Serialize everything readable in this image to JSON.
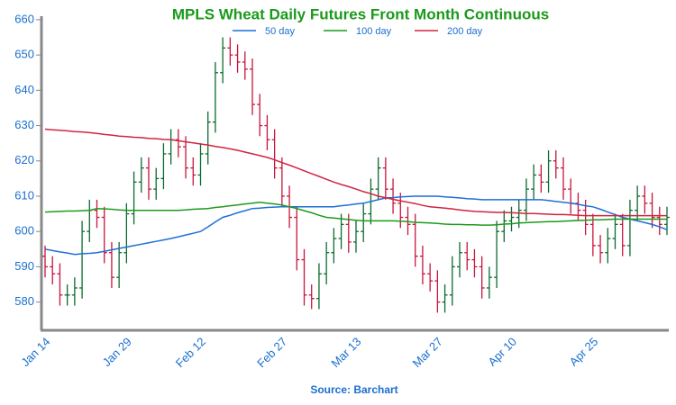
{
  "chart_data": {
    "type": "ohlc",
    "title": "MPLS Wheat Daily Futures Front Month Continuous",
    "source": "Source: Barchart",
    "categories": [
      "Jan 14",
      null,
      null,
      null,
      null,
      null,
      null,
      null,
      null,
      null,
      null,
      "Jan 29",
      null,
      null,
      null,
      null,
      null,
      null,
      null,
      null,
      null,
      "Feb 12",
      null,
      null,
      null,
      null,
      null,
      null,
      null,
      null,
      null,
      null,
      "Feb 27",
      null,
      null,
      null,
      null,
      null,
      null,
      null,
      null,
      null,
      "Mar 13",
      null,
      null,
      null,
      null,
      null,
      null,
      null,
      null,
      null,
      null,
      "Mar 27",
      null,
      null,
      null,
      null,
      null,
      null,
      null,
      null,
      null,
      "Apr 10",
      null,
      null,
      null,
      null,
      null,
      null,
      null,
      null,
      null,
      null,
      "Apr 25",
      null,
      null,
      null,
      null,
      null,
      null,
      null,
      null,
      null,
      null
    ],
    "open": [
      593,
      590,
      588,
      582,
      582,
      584,
      600,
      606,
      604,
      594,
      587,
      594,
      605,
      614,
      618,
      612,
      615,
      622,
      626,
      624,
      618,
      616,
      622,
      631,
      645,
      652,
      650,
      648,
      646,
      636,
      630,
      626,
      618,
      610,
      604,
      592,
      582,
      581,
      588,
      594,
      598,
      602,
      597,
      600,
      605,
      612,
      618,
      612,
      608,
      604,
      602,
      593,
      588,
      586,
      580,
      582,
      590,
      594,
      592,
      590,
      584,
      587,
      600,
      603,
      604,
      606,
      612,
      616,
      614,
      620,
      618,
      612,
      608,
      606,
      602,
      596,
      594,
      598,
      602,
      596,
      606,
      610,
      608,
      604,
      602
    ],
    "high": [
      596,
      593,
      591,
      585,
      587,
      603,
      609,
      609,
      607,
      597,
      597,
      608,
      617,
      621,
      621,
      618,
      625,
      629,
      629,
      627,
      621,
      625,
      634,
      648,
      655,
      655,
      653,
      651,
      649,
      639,
      633,
      629,
      621,
      613,
      607,
      595,
      585,
      591,
      597,
      601,
      605,
      605,
      603,
      608,
      615,
      621,
      621,
      615,
      611,
      607,
      605,
      596,
      591,
      589,
      585,
      593,
      597,
      597,
      595,
      593,
      590,
      603,
      606,
      607,
      609,
      615,
      619,
      619,
      623,
      623,
      621,
      615,
      611,
      609,
      605,
      599,
      601,
      605,
      605,
      609,
      613,
      613,
      611,
      607,
      607
    ],
    "low": [
      587,
      585,
      579,
      579,
      579,
      581,
      597,
      601,
      591,
      584,
      584,
      591,
      602,
      611,
      609,
      609,
      612,
      619,
      621,
      615,
      613,
      613,
      619,
      628,
      642,
      647,
      645,
      643,
      633,
      627,
      623,
      615,
      607,
      601,
      589,
      579,
      578,
      578,
      585,
      591,
      595,
      594,
      594,
      597,
      602,
      609,
      609,
      605,
      601,
      599,
      590,
      585,
      583,
      577,
      577,
      579,
      587,
      589,
      587,
      581,
      581,
      584,
      597,
      600,
      601,
      603,
      609,
      611,
      611,
      615,
      609,
      605,
      603,
      599,
      593,
      591,
      591,
      595,
      593,
      593,
      603,
      605,
      601,
      599,
      599
    ],
    "close": [
      590,
      588,
      582,
      582,
      584,
      600,
      606,
      604,
      594,
      587,
      594,
      605,
      614,
      618,
      612,
      615,
      622,
      626,
      624,
      618,
      616,
      622,
      631,
      645,
      652,
      650,
      648,
      646,
      636,
      630,
      626,
      618,
      610,
      604,
      592,
      582,
      581,
      588,
      594,
      598,
      602,
      597,
      600,
      605,
      612,
      618,
      612,
      608,
      604,
      602,
      593,
      588,
      586,
      580,
      582,
      590,
      594,
      592,
      590,
      584,
      587,
      600,
      603,
      604,
      606,
      612,
      616,
      614,
      620,
      618,
      612,
      608,
      606,
      602,
      596,
      594,
      598,
      602,
      596,
      606,
      610,
      608,
      604,
      602,
      604
    ],
    "up_color": "#0b6b2e",
    "down_color": "#c8143c",
    "series": [
      {
        "name": "50 day",
        "color": "#1f6fd6",
        "values": [
          595,
          594.6,
          594.2,
          593.9,
          593.5,
          593.7,
          593.8,
          594,
          594.4,
          594.8,
          595.2,
          595.6,
          596,
          596.4,
          596.8,
          597.2,
          597.6,
          598,
          598.5,
          599,
          599.5,
          600,
          601.3,
          602.7,
          604,
          604.6,
          605.3,
          605.9,
          606.5,
          606.6,
          606.8,
          606.9,
          607,
          607,
          607,
          607,
          607,
          607,
          607,
          607,
          607.3,
          607.5,
          607.8,
          608,
          608.5,
          609,
          609.5,
          609.6,
          609.8,
          609.9,
          610,
          610,
          610,
          610,
          609.8,
          609.7,
          609.5,
          609.3,
          609.2,
          609,
          609,
          609,
          609,
          609,
          609,
          609,
          609,
          609,
          608.8,
          608.5,
          608.3,
          608,
          607.7,
          607.3,
          607,
          606.3,
          605.5,
          604.8,
          604,
          603.5,
          603,
          602.5,
          602,
          601.3,
          600.5
        ]
      },
      {
        "name": "100 day",
        "color": "#1d9a1d",
        "values": [
          605.5,
          605.6,
          605.7,
          605.8,
          605.8,
          605.9,
          606,
          606.5,
          606.4,
          606.3,
          606.1,
          606,
          606,
          606,
          606,
          606,
          606,
          606,
          606,
          606.1,
          606.3,
          606.4,
          606.5,
          606.8,
          607,
          607.3,
          607.5,
          607.8,
          608,
          608.3,
          608,
          607.8,
          607.5,
          607,
          606.5,
          605.9,
          605.3,
          604.6,
          604,
          603.8,
          603.6,
          603.4,
          603.2,
          603,
          603,
          603,
          603,
          603,
          602.9,
          602.8,
          602.6,
          602.5,
          602.4,
          602.3,
          602.1,
          602,
          602,
          601.9,
          601.9,
          601.8,
          601.8,
          601.9,
          602.1,
          602.2,
          602.4,
          602.5,
          602.6,
          602.7,
          602.8,
          602.8,
          602.9,
          603,
          603.1,
          603.2,
          603.3,
          603.3,
          603.4,
          603.5,
          603.5,
          603.5,
          603.5,
          603.5,
          603.5,
          603.5,
          603.5
        ]
      },
      {
        "name": "200 day",
        "color": "#d0243f",
        "values": [
          629,
          628.8,
          628.7,
          628.5,
          628.3,
          628.2,
          628,
          627.8,
          627.5,
          627.3,
          627,
          626.9,
          626.7,
          626.6,
          626.4,
          626.3,
          626.1,
          626,
          625.7,
          625.4,
          625.1,
          624.8,
          624.5,
          624.1,
          623.8,
          623.4,
          623,
          622.5,
          622,
          621.5,
          621,
          620.3,
          619.5,
          618.8,
          618,
          617.2,
          616.4,
          615.6,
          614.8,
          614,
          613.3,
          612.7,
          612,
          611.3,
          610.7,
          610,
          609.6,
          609.1,
          608.7,
          608.3,
          607.9,
          607.4,
          607,
          606.8,
          606.6,
          606.4,
          606.1,
          605.9,
          605.7,
          605.6,
          605.5,
          605.4,
          605.4,
          605.3,
          605.2,
          605.1,
          605.1,
          605,
          604.9,
          604.8,
          604.8,
          604.7,
          604.6,
          604.5,
          604.5,
          604.5,
          604.5,
          604.5,
          604.5,
          604.5,
          604.5,
          604.5,
          604.5,
          604.5,
          604.5
        ]
      }
    ],
    "ylim": [
      572,
      661
    ],
    "yticks": [
      580,
      590,
      600,
      610,
      620,
      630,
      640,
      650,
      660
    ],
    "grid": false
  }
}
